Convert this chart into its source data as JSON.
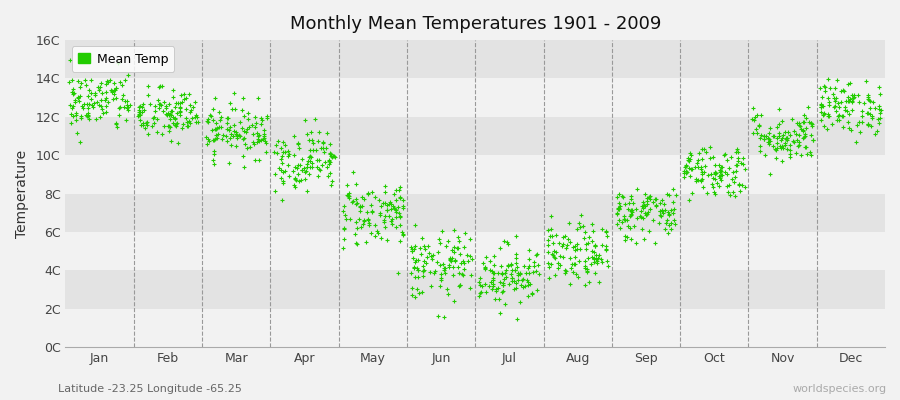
{
  "title": "Monthly Mean Temperatures 1901 - 2009",
  "ylabel": "Temperature",
  "xlabel_bottom": "Latitude -23.25 Longitude -65.25",
  "watermark": "worldspecies.org",
  "legend_label": "Mean Temp",
  "dot_color": "#22cc00",
  "bg_color": "#f2f2f2",
  "band_light": "#f2f2f2",
  "band_dark": "#e3e3e3",
  "ytick_labels": [
    "0C",
    "2C",
    "4C",
    "6C",
    "8C",
    "10C",
    "12C",
    "14C",
    "16C"
  ],
  "ytick_values": [
    0,
    2,
    4,
    6,
    8,
    10,
    12,
    14,
    16
  ],
  "ylim": [
    0,
    16
  ],
  "months": [
    "Jan",
    "Feb",
    "Mar",
    "Apr",
    "May",
    "Jun",
    "Jul",
    "Aug",
    "Sep",
    "Oct",
    "Nov",
    "Dec"
  ],
  "n_years": 109,
  "mean_temps": [
    12.8,
    12.1,
    11.3,
    9.8,
    7.0,
    4.2,
    3.8,
    4.8,
    7.0,
    9.2,
    11.0,
    12.5
  ],
  "spreads": [
    0.8,
    0.7,
    0.7,
    0.8,
    0.9,
    0.9,
    0.8,
    0.8,
    0.7,
    0.7,
    0.7,
    0.7
  ]
}
